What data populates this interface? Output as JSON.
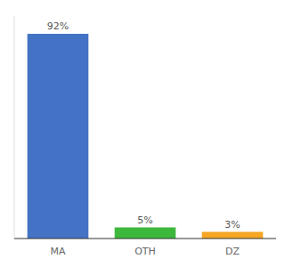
{
  "chart_data": {
    "type": "bar",
    "categories": [
      "MA",
      "OTH",
      "DZ"
    ],
    "values": [
      92,
      5,
      3
    ],
    "value_labels": [
      "92%",
      "5%",
      "3%"
    ],
    "colors": [
      "#4472c4",
      "#3db83d",
      "#f5a623"
    ],
    "ylim": [
      0,
      100
    ],
    "data_labels": true,
    "tick_labels": "x",
    "grid": false
  }
}
